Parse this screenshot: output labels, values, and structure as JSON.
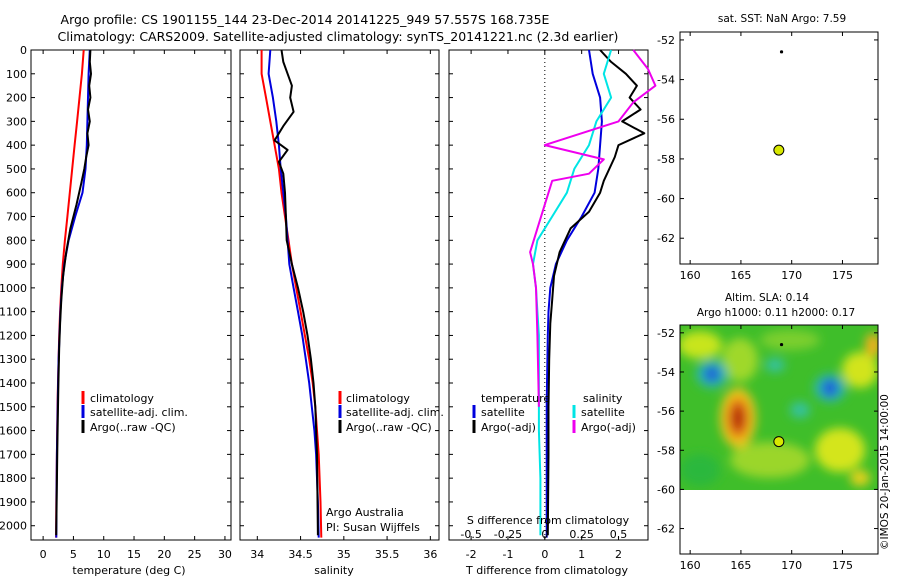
{
  "header": {
    "line1": "Argo profile: CS 1901155_144 23-Dec-2014 20141225_949 57.557S 168.735E",
    "line2": "Climatology: CARS2009. Satellite-adjusted climatology: synTS_20141221.nc (2.3d earlier)"
  },
  "colors": {
    "climatology": "#ff0000",
    "satellite": "#0000dd",
    "argo": "#000000",
    "cyan": "#00e5e5",
    "magenta": "#ee00ee",
    "marker": "#d8e800"
  },
  "footer_credit": "©IMOS 20-Jan-2015 14:00:00",
  "chart_data": [
    {
      "type": "line",
      "xlabel": "temperature (deg C)",
      "xlim": [
        -2,
        31
      ],
      "ylim": [
        2060,
        0
      ],
      "xticks": [
        "0",
        "5",
        "10",
        "15",
        "20",
        "25",
        "30"
      ],
      "yticks": [
        "0",
        "100",
        "200",
        "300",
        "400",
        "500",
        "600",
        "700",
        "800",
        "900",
        "1000",
        "1100",
        "1200",
        "1300",
        "1400",
        "1500",
        "1600",
        "1700",
        "1800",
        "1900",
        "2000"
      ],
      "legend_position": "lower-right",
      "series": [
        {
          "name": "climatology",
          "color": "#ff0000",
          "x": [
            6.7,
            6.4,
            6.0,
            5.6,
            5.2,
            4.8,
            4.4,
            4.0,
            3.6,
            3.25,
            3.0,
            2.8,
            2.65,
            2.55,
            2.45,
            2.38,
            2.32,
            2.27,
            2.22,
            2.18,
            2.14
          ],
          "y": [
            0,
            100,
            200,
            300,
            400,
            500,
            600,
            700,
            800,
            900,
            1000,
            1100,
            1200,
            1300,
            1400,
            1500,
            1600,
            1700,
            1800,
            1900,
            2050
          ]
        },
        {
          "name": "satellite-adj. clim.",
          "color": "#0000dd",
          "x": [
            7.7,
            7.5,
            7.4,
            7.3,
            7.2,
            7.0,
            6.5,
            5.3,
            4.2,
            3.5,
            3.1,
            2.85,
            2.7,
            2.55,
            2.47,
            2.4,
            2.34,
            2.28,
            2.24,
            2.2,
            2.17
          ],
          "y": [
            0,
            100,
            200,
            300,
            400,
            500,
            600,
            700,
            800,
            900,
            1000,
            1100,
            1200,
            1300,
            1400,
            1500,
            1600,
            1700,
            1800,
            1900,
            2050
          ]
        },
        {
          "name": "Argo(..raw -QC)",
          "color": "#000000",
          "x": [
            7.8,
            7.7,
            7.9,
            7.6,
            7.8,
            7.4,
            7.7,
            7.3,
            7.5,
            7.1,
            6.8,
            6.3,
            5.5,
            4.5,
            3.8,
            3.3,
            3.0,
            2.8,
            2.65,
            2.52,
            2.43,
            2.36,
            2.3,
            2.25,
            2.2,
            2.16
          ],
          "y": [
            0,
            50,
            100,
            150,
            200,
            250,
            300,
            350,
            400,
            450,
            500,
            560,
            650,
            750,
            850,
            950,
            1050,
            1150,
            1250,
            1400,
            1550,
            1650,
            1750,
            1850,
            1950,
            2040
          ]
        }
      ]
    },
    {
      "type": "line",
      "xlabel": "salinity",
      "xlim": [
        33.8,
        36.1
      ],
      "ylim": [
        2060,
        0
      ],
      "xticks": [
        "34",
        "34.5",
        "35",
        "35.5",
        "36"
      ],
      "legend_position": "lower-right",
      "annotation": [
        "Argo Australia",
        "PI: Susan Wijffels"
      ],
      "series": [
        {
          "name": "climatology",
          "color": "#ff0000",
          "x": [
            34.05,
            34.05,
            34.1,
            34.15,
            34.2,
            34.25,
            34.28,
            34.32,
            34.36,
            34.4,
            34.45,
            34.5,
            34.55,
            34.6,
            34.64,
            34.67,
            34.69,
            34.71,
            34.72,
            34.73,
            34.74
          ],
          "y": [
            0,
            100,
            200,
            300,
            400,
            500,
            600,
            700,
            800,
            900,
            1000,
            1100,
            1200,
            1300,
            1400,
            1500,
            1600,
            1700,
            1800,
            1900,
            2050
          ]
        },
        {
          "name": "satellite-adj. clim.",
          "color": "#0000dd",
          "x": [
            34.15,
            34.13,
            34.18,
            34.22,
            34.25,
            34.27,
            34.3,
            34.33,
            34.35,
            34.37,
            34.42,
            34.47,
            34.52,
            34.56,
            34.6,
            34.63,
            34.66,
            34.68,
            34.69,
            34.7,
            34.71
          ],
          "y": [
            0,
            100,
            200,
            300,
            400,
            500,
            600,
            700,
            800,
            900,
            1000,
            1100,
            1200,
            1300,
            1400,
            1500,
            1600,
            1700,
            1800,
            1900,
            2050
          ]
        },
        {
          "name": "Argo(..raw -QC)",
          "color": "#000000",
          "x": [
            34.28,
            34.3,
            34.35,
            34.4,
            34.38,
            34.42,
            34.3,
            34.2,
            34.35,
            34.25,
            34.3,
            34.32,
            34.33,
            34.34,
            34.4,
            34.47,
            34.53,
            34.58,
            34.62,
            34.65,
            34.67,
            34.69,
            34.7
          ],
          "y": [
            0,
            50,
            100,
            150,
            200,
            260,
            320,
            380,
            420,
            470,
            520,
            600,
            700,
            800,
            900,
            1000,
            1100,
            1200,
            1300,
            1400,
            1500,
            1700,
            2040
          ]
        }
      ]
    },
    {
      "type": "line",
      "xlabel": "T difference from climatology",
      "xlabel2": "S difference from climatology",
      "xlim": [
        -2.6,
        2.8
      ],
      "ylim": [
        2060,
        0
      ],
      "xticks": [
        "-2",
        "-1",
        "0",
        "1",
        "2"
      ],
      "xticks2": [
        "-0.5",
        "-0.25",
        "0",
        "0.25",
        "0.5"
      ],
      "legend_position": "lower-right",
      "legend_headers": [
        "temperature",
        "salinity"
      ],
      "series": [
        {
          "name": "satellite",
          "group": "temperature",
          "color": "#0000dd",
          "x": [
            1.2,
            1.3,
            1.5,
            1.55,
            1.5,
            1.45,
            1.35,
            1.0,
            0.6,
            0.3,
            0.15,
            0.1,
            0.08,
            0.07,
            0.06,
            0.05,
            0.05,
            0.05,
            0.05
          ],
          "y": [
            0,
            100,
            200,
            300,
            400,
            500,
            600,
            700,
            800,
            900,
            1000,
            1100,
            1200,
            1300,
            1400,
            1500,
            1600,
            1800,
            2050
          ]
        },
        {
          "name": "Argo(-adj)",
          "group": "temperature",
          "color": "#000000",
          "x": [
            1.5,
            1.8,
            2.2,
            2.5,
            2.3,
            2.6,
            2.1,
            2.7,
            2.0,
            1.9,
            1.6,
            1.5,
            1.2,
            0.7,
            0.4,
            0.25,
            0.2,
            0.15,
            0.12,
            0.1,
            0.1,
            0.08
          ],
          "y": [
            0,
            50,
            100,
            150,
            200,
            250,
            300,
            350,
            400,
            450,
            550,
            600,
            680,
            750,
            850,
            950,
            1050,
            1150,
            1300,
            1500,
            1700,
            2040
          ]
        },
        {
          "name": "satellite",
          "group": "salinity",
          "color": "#00e5e5",
          "x": [
            0.45,
            0.4,
            0.45,
            0.35,
            0.3,
            0.2,
            0.15,
            0.05,
            -0.05,
            -0.08,
            -0.06,
            -0.05,
            -0.04,
            -0.04,
            -0.04,
            -0.03,
            -0.03,
            -0.03
          ],
          "y": [
            0,
            100,
            200,
            300,
            400,
            500,
            600,
            700,
            800,
            900,
            1000,
            1100,
            1200,
            1400,
            1600,
            1800,
            1950,
            2040
          ]
        },
        {
          "name": "Argo(-adj)",
          "group": "salinity",
          "color": "#ee00ee",
          "x": [
            0.6,
            0.7,
            0.75,
            0.6,
            0.5,
            0.0,
            0.4,
            0.3,
            0.05,
            0.0,
            -0.05,
            -0.1,
            -0.08,
            -0.06,
            -0.05,
            -0.04
          ],
          "y": [
            0,
            80,
            150,
            220,
            300,
            400,
            460,
            520,
            550,
            650,
            750,
            850,
            900,
            1000,
            1200,
            1500
          ]
        }
      ]
    },
    {
      "type": "scatter",
      "title": "sat. SST: NaN Argo: 7.59",
      "xlim": [
        159,
        178.5
      ],
      "ylim": [
        -63.3,
        -51.6
      ],
      "xticks": [
        "160",
        "165",
        "170",
        "175"
      ],
      "yticks": [
        "-52",
        "-54",
        "-56",
        "-58",
        "-60",
        "-62"
      ],
      "points": [
        {
          "x": 169.0,
          "y": -52.6,
          "marker": "dot",
          "color": "#000000"
        },
        {
          "x": 168.735,
          "y": -57.557,
          "marker": "circle",
          "color": "#d8e800"
        }
      ]
    },
    {
      "type": "heatmap",
      "title": "Altim. SLA: 0.14",
      "subtitle": "Argo h1000: 0.11 h2000: 0.17",
      "xlim": [
        159,
        178.5
      ],
      "ylim": [
        -63.3,
        -51.6
      ],
      "data_extent_lat": [
        -60.1,
        -51.6
      ],
      "xticks": [
        "160",
        "165",
        "170",
        "175"
      ],
      "yticks": [
        "-52",
        "-54",
        "-56",
        "-58",
        "-60",
        "-62"
      ],
      "features": [
        {
          "kind": "positive anomaly",
          "lon": 164.5,
          "lat": -56.5
        },
        {
          "kind": "negative anomaly",
          "lon": 162.5,
          "lat": -54.0
        },
        {
          "kind": "negative anomaly",
          "lon": 174.0,
          "lat": -54.8
        },
        {
          "kind": "positive anomaly",
          "lon": 177.5,
          "lat": -53.0
        }
      ],
      "points": [
        {
          "x": 169.0,
          "y": -52.6,
          "marker": "dot",
          "color": "#000000"
        },
        {
          "x": 168.735,
          "y": -57.557,
          "marker": "circle",
          "color": "#d8e800"
        }
      ]
    }
  ]
}
